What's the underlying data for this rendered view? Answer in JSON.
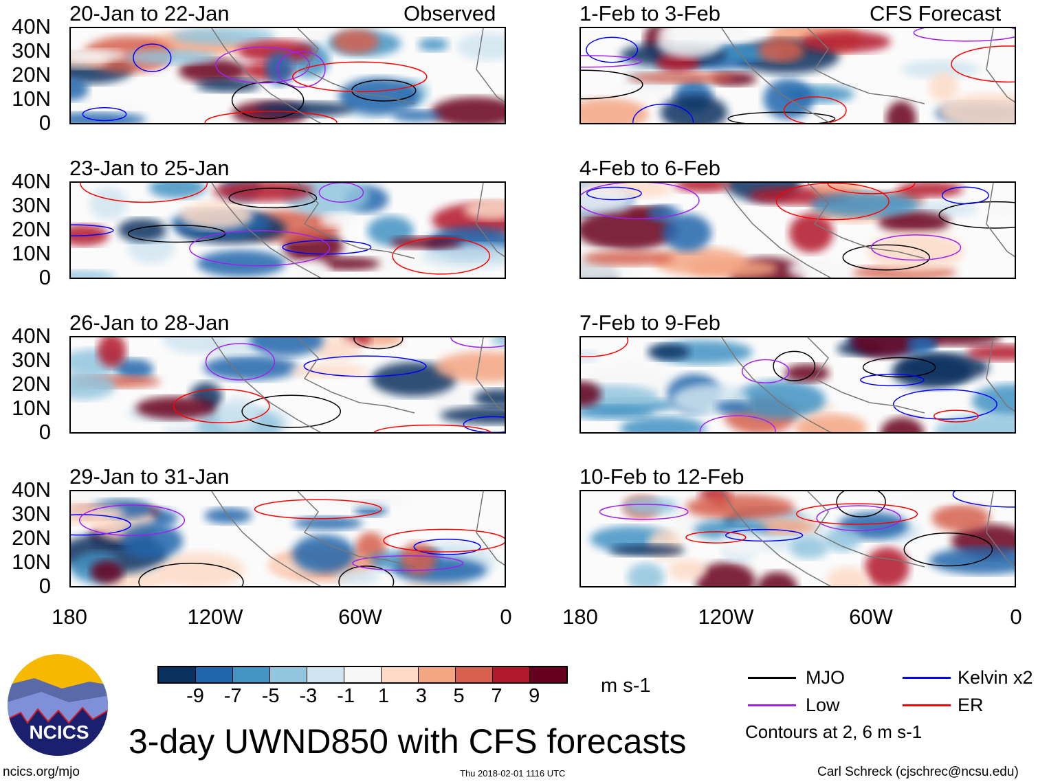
{
  "title": "3-day UWND850 with CFS forecasts",
  "observed_label": "Observed",
  "forecast_label": "CFS Forecast",
  "panels_observed": [
    "20-Jan to 22-Jan",
    "23-Jan to 25-Jan",
    "26-Jan to 28-Jan",
    "29-Jan to 31-Jan"
  ],
  "panels_forecast": [
    "1-Feb to 3-Feb",
    "4-Feb to 6-Feb",
    "7-Feb to 9-Feb",
    "10-Feb to 12-Feb"
  ],
  "lat_ticks": [
    "40N",
    "30N",
    "20N",
    "10N",
    "0"
  ],
  "lon_ticks": [
    "180",
    "120W",
    "60W",
    "0"
  ],
  "colorbar": {
    "labels": [
      "-9",
      "-7",
      "-5",
      "-3",
      "-1",
      "1",
      "3",
      "5",
      "7",
      "9"
    ],
    "colors": [
      "#0a3060",
      "#2166ac",
      "#4393c3",
      "#92c5de",
      "#d1e5f0",
      "#f7f7f7",
      "#fddbc7",
      "#f4a582",
      "#d6604d",
      "#b2182b",
      "#67001f"
    ],
    "units": "m s-1"
  },
  "legend": {
    "items": [
      {
        "label": "MJO",
        "color": "#000000"
      },
      {
        "label": "Kelvin x2",
        "color": "#0000ff"
      },
      {
        "label": "Low",
        "color": "#a020f0"
      },
      {
        "label": "ER",
        "color": "#ff0000"
      }
    ],
    "note": "Contours at 2, 6 m s-1"
  },
  "logo_text": "NCICS",
  "footer": {
    "left": "ncics.org/mjo",
    "center": "Thu 2018-02-01 1116 UTC",
    "right": "Carl Schreck (cjschrec@ncsu.edu)"
  }
}
